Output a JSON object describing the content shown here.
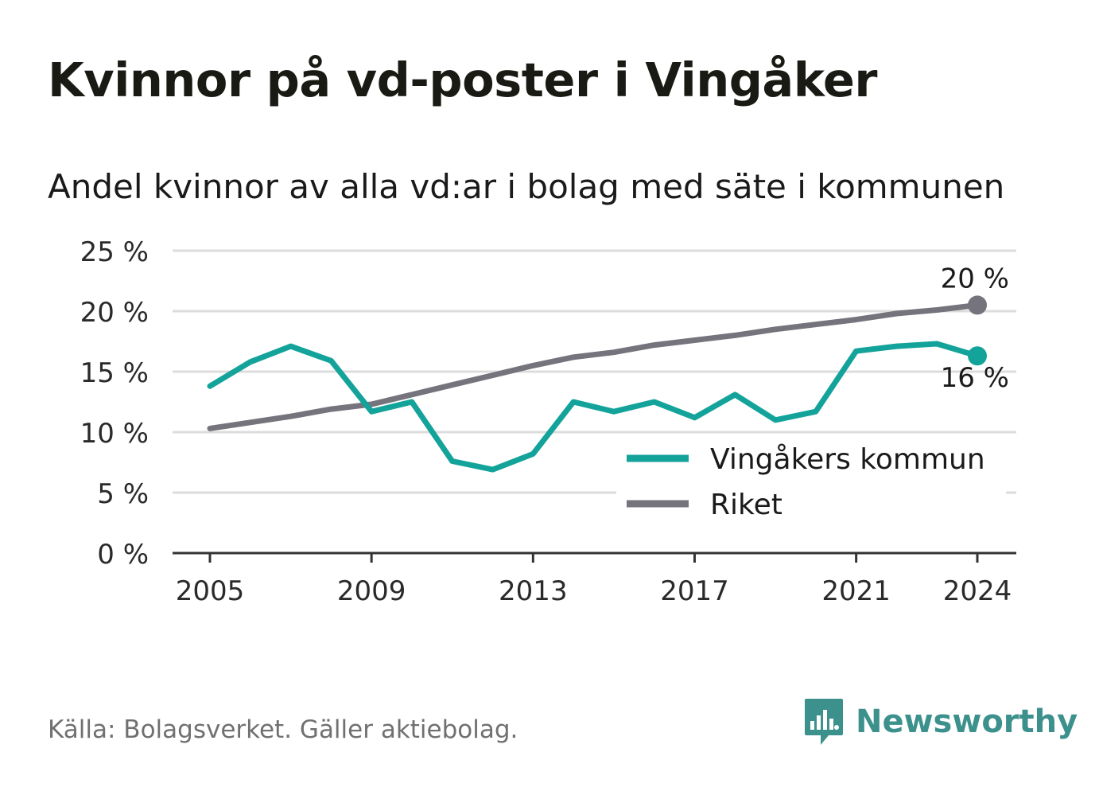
{
  "title": "Kvinnor på vd-poster i Vingåker",
  "subtitle": "Andel kvinnor av alla vd:ar i bolag med säte i kommunen",
  "source": "Källa: Bolagsverket. Gäller aktiebolag.",
  "brand": {
    "name": "Newsworthy",
    "logo_icon": "newsworthy-logo-icon"
  },
  "colors": {
    "vingaker": "#13a39a",
    "riket": "#75737c",
    "grid": "#dcdcdc",
    "axis": "#333333"
  },
  "chart_data": {
    "type": "line",
    "x": [
      2005,
      2006,
      2007,
      2008,
      2009,
      2010,
      2011,
      2012,
      2013,
      2014,
      2015,
      2016,
      2017,
      2018,
      2019,
      2020,
      2021,
      2022,
      2023,
      2024
    ],
    "x_ticks": [
      "2005",
      "2009",
      "2013",
      "2017",
      "2021",
      "2024"
    ],
    "y_ticks": [
      "0 %",
      "5 %",
      "10 %",
      "15 %",
      "20 %",
      "25 %"
    ],
    "ylim": [
      0,
      25
    ],
    "grid": true,
    "legend_position": "bottom-right",
    "series": [
      {
        "name": "Vingåkers kommun",
        "color": "#13a39a",
        "values": [
          13.8,
          15.8,
          17.1,
          15.9,
          11.7,
          12.5,
          7.6,
          6.9,
          8.2,
          12.5,
          11.7,
          12.5,
          11.2,
          13.1,
          11.0,
          11.7,
          16.7,
          17.1,
          17.3,
          16.3
        ],
        "end_label": "16 %"
      },
      {
        "name": "Riket",
        "color": "#75737c",
        "values": [
          10.3,
          10.8,
          11.3,
          11.9,
          12.3,
          13.1,
          13.9,
          14.7,
          15.5,
          16.2,
          16.6,
          17.2,
          17.6,
          18.0,
          18.5,
          18.9,
          19.3,
          19.8,
          20.1,
          20.5
        ],
        "end_label": "20 %"
      }
    ]
  }
}
